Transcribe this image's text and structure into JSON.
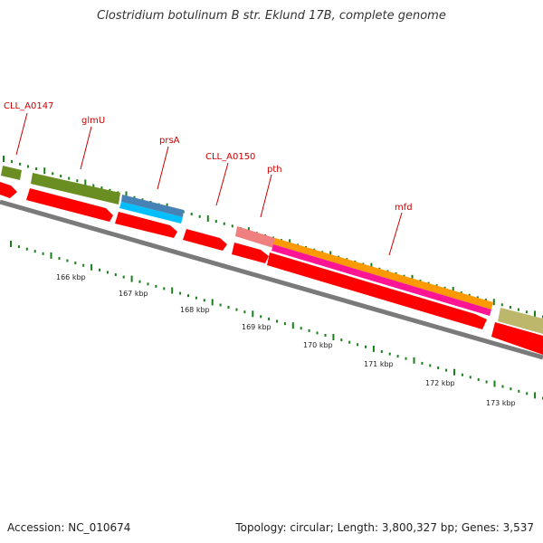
{
  "title": "Clostridium botulinum B str. Eklund 17B, complete genome",
  "footer": {
    "accession": "Accession: NC_010674",
    "topology": "Topology: circular; Length: 3,800,327 bp; Genes: 3,537"
  },
  "scale_labels": [
    "166 kbp",
    "167 kbp",
    "168 kbp",
    "169 kbp",
    "170 kbp",
    "171 kbp",
    "172 kbp",
    "173 kbp"
  ],
  "gene_labels": [
    "CLL_A0147",
    "glmU",
    "prsA",
    "CLL_A0150",
    "pth",
    "mfd"
  ],
  "colors": {
    "label_red": "#cc0000",
    "arrow_red": "#ff0000",
    "backbone": "#7a7a7a",
    "tick_green": "#1a7f1a",
    "olive": "#6b8e23",
    "steelblue": "#4682b4",
    "skyblue": "#00bfff",
    "salmon": "#f08080",
    "orange": "#ff9900",
    "magenta": "#ff1493",
    "khaki": "#bdb76b"
  }
}
